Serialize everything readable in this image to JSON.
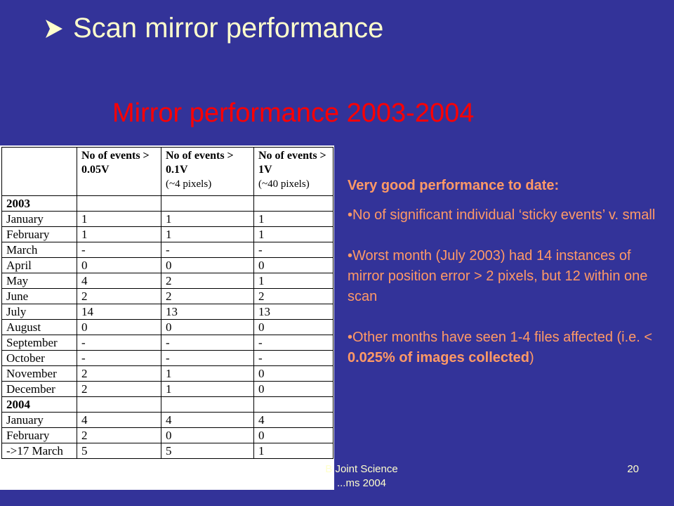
{
  "slide": {
    "heading": "Scan mirror performance",
    "bullet_icon": "arrow-right-icon",
    "subtitle": "Mirror performance 2003-2004",
    "footer_text_line1": "B Joint Science",
    "footer_text_line2": "...ms 2004",
    "slide_number": "20"
  },
  "colors": {
    "background": "#333399",
    "heading": "#ffffcc",
    "subtitle": "#ff0000",
    "body_text": "#ff9966"
  },
  "table": {
    "headers": [
      {
        "main": "",
        "note": ""
      },
      {
        "main": "No of events > 0.05V",
        "note": ""
      },
      {
        "main": "No of events > 0.1V",
        "note": "(~4 pixels)"
      },
      {
        "main": "No of events > 1V",
        "note": "(~40 pixels)"
      }
    ],
    "rows": [
      {
        "label": "2003",
        "values": [
          "",
          "",
          ""
        ],
        "is_year": true
      },
      {
        "label": "January",
        "values": [
          "1",
          "1",
          "1"
        ]
      },
      {
        "label": "February",
        "values": [
          "1",
          "1",
          "1"
        ]
      },
      {
        "label": "March",
        "values": [
          "-",
          "-",
          "-"
        ]
      },
      {
        "label": "April",
        "values": [
          "0",
          "0",
          "0"
        ]
      },
      {
        "label": "May",
        "values": [
          "4",
          "2",
          "1"
        ]
      },
      {
        "label": "June",
        "values": [
          "2",
          "2",
          "2"
        ]
      },
      {
        "label": "July",
        "values": [
          "14",
          "13",
          "13"
        ]
      },
      {
        "label": "August",
        "values": [
          "0",
          "0",
          "0"
        ]
      },
      {
        "label": "September",
        "values": [
          "-",
          "-",
          "-"
        ]
      },
      {
        "label": "October",
        "values": [
          "-",
          "-",
          "-"
        ]
      },
      {
        "label": "November",
        "values": [
          "2",
          "1",
          "0"
        ]
      },
      {
        "label": "December",
        "values": [
          "2",
          "1",
          "0"
        ]
      },
      {
        "label": "2004",
        "values": [
          "",
          "",
          ""
        ],
        "is_year": true
      },
      {
        "label": "January",
        "values": [
          "4",
          "4",
          "4"
        ]
      },
      {
        "label": "February",
        "values": [
          "2",
          "0",
          "0"
        ]
      },
      {
        "label": "->17 March",
        "values": [
          "5",
          "5",
          "1"
        ]
      }
    ]
  },
  "summary": {
    "lead": "Very good performance to date:",
    "bullet1": "•No of significant individual ‘sticky events’ v. small",
    "bullet2": "•Worst month (July 2003) had 14 instances of mirror position error > 2 pixels, but 12 within one scan",
    "bullet3_pre": "•Other months have seen 1-4 files affected (i.e. < ",
    "bullet3_bold": "0.025% of images collected",
    "bullet3_post": ")"
  }
}
